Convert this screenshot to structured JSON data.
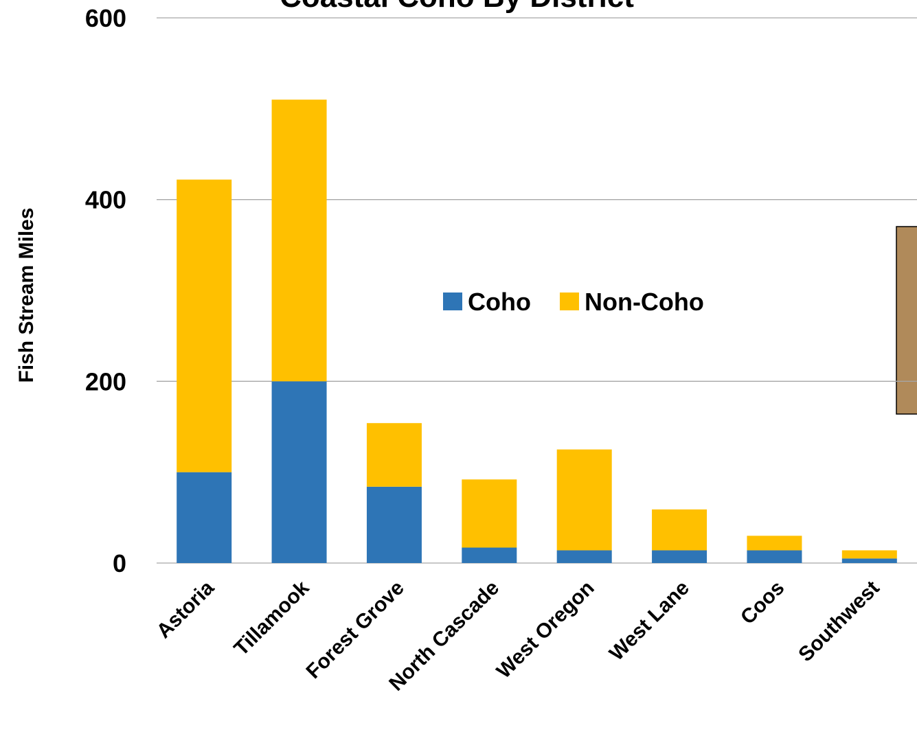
{
  "chart_data": {
    "type": "stacked_bar",
    "title": "Coastal Coho By District",
    "y_label": "Fish  Stream  Miles",
    "categories": [
      "Astoria",
      "Tillamook",
      "Forest Grove",
      "North Cascade",
      "West Oregon",
      "West Lane",
      "Coos",
      "Southwest"
    ],
    "series": [
      {
        "name": "Coho",
        "color": "#2e75b6",
        "values": [
          100,
          200,
          84,
          17,
          14,
          14,
          14,
          5
        ]
      },
      {
        "name": "Non-Coho",
        "color": "#ffc000",
        "values": [
          322,
          310,
          70,
          75,
          111,
          45,
          16,
          9
        ]
      }
    ],
    "ylim": [
      0,
      600
    ],
    "yticks": [
      0,
      200,
      400,
      600
    ],
    "grid": true
  }
}
